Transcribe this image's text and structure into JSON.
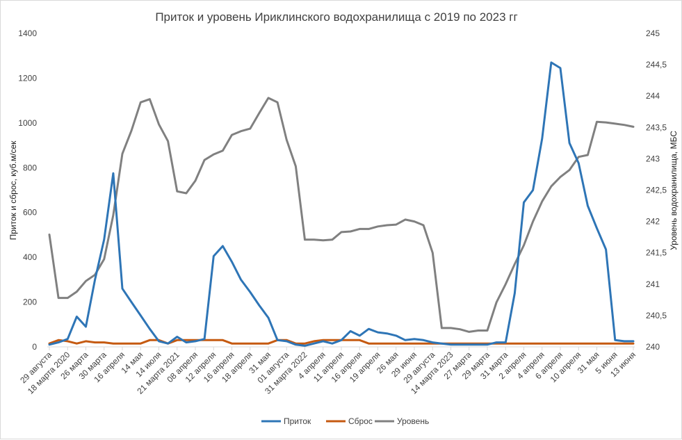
{
  "chart_data": {
    "type": "line",
    "title": "Приток и уровень Ириклинского водохранилища с 2019 по 2023 гг",
    "ylabel": "Приток и сброс, куб.м/сек",
    "y2label": "Уровень водохранилища, МБС",
    "ylim": [
      0,
      1400
    ],
    "yticks": [
      0,
      200,
      400,
      600,
      800,
      1000,
      1200,
      1400
    ],
    "y2lim": [
      240,
      245
    ],
    "y2ticks": [
      "240",
      "240,5",
      "241",
      "241,5",
      "242",
      "242,5",
      "243",
      "243,5",
      "244",
      "244,5",
      "245"
    ],
    "x_tick_labels": [
      "29 августа",
      "18 марта 2020",
      "26 марта",
      "30 марта",
      "16 апреля",
      "14 мая",
      "14 июля",
      "21 марта 2021",
      "08 апреля",
      "12 апреля",
      "16 апреля",
      "18 апреля",
      "31 мая",
      "01 августа",
      "31 марта 2022",
      "4 апреля",
      "11 апреля",
      "16 апреля",
      "19 апреля",
      "26 мая",
      "29 июня",
      "29 августа",
      "14 марта 2023",
      "27 марта",
      "29 марта",
      "31 марта",
      "2 апреля",
      "4 апреля",
      "6 апреля",
      "10 апреля",
      "31 мая",
      "5 июня",
      "13 июня"
    ],
    "n_points": 65,
    "series": [
      {
        "name": "Приток",
        "color": "#2e75b6",
        "axis": "left",
        "values": [
          10,
          20,
          35,
          135,
          90,
          300,
          480,
          775,
          260,
          200,
          140,
          80,
          25,
          15,
          45,
          20,
          25,
          35,
          405,
          450,
          380,
          300,
          245,
          185,
          130,
          30,
          25,
          10,
          5,
          15,
          25,
          15,
          30,
          70,
          50,
          80,
          65,
          60,
          50,
          30,
          35,
          30,
          20,
          15,
          10,
          10,
          10,
          10,
          10,
          20,
          20,
          240,
          645,
          700,
          930,
          1270,
          1245,
          910,
          820,
          630,
          530,
          435,
          30,
          25,
          25
        ]
      },
      {
        "name": "Сброс",
        "color": "#c55a11",
        "axis": "left",
        "values": [
          15,
          30,
          25,
          15,
          25,
          20,
          20,
          15,
          15,
          15,
          15,
          30,
          30,
          15,
          30,
          30,
          30,
          30,
          30,
          30,
          15,
          15,
          15,
          15,
          15,
          30,
          30,
          15,
          15,
          25,
          30,
          30,
          30,
          30,
          30,
          15,
          15,
          15,
          15,
          15,
          15,
          15,
          15,
          15,
          15,
          15,
          15,
          15,
          15,
          15,
          15,
          15,
          15,
          15,
          15,
          15,
          15,
          15,
          15,
          15,
          15,
          15,
          15,
          15,
          15
        ]
      },
      {
        "name": "Уровень",
        "color": "#808080",
        "axis": "right",
        "values": [
          241.79,
          240.78,
          240.78,
          240.88,
          241.05,
          241.15,
          241.4,
          242.1,
          243.08,
          243.45,
          243.9,
          243.95,
          243.55,
          243.28,
          242.48,
          242.45,
          242.65,
          242.98,
          243.07,
          243.13,
          243.38,
          243.44,
          243.48,
          243.73,
          243.97,
          243.9,
          243.3,
          242.88,
          241.71,
          241.71,
          241.7,
          241.71,
          241.83,
          241.84,
          241.88,
          241.88,
          241.92,
          241.94,
          241.95,
          242.03,
          242.0,
          241.94,
          241.5,
          240.3,
          240.3,
          240.28,
          240.24,
          240.26,
          240.26,
          240.71,
          241.0,
          241.32,
          241.62,
          242.0,
          242.32,
          242.56,
          242.71,
          242.82,
          243.03,
          243.06,
          243.59,
          243.58,
          243.56,
          243.54,
          243.51
        ]
      }
    ],
    "legend_position": "bottom",
    "grid": false
  }
}
